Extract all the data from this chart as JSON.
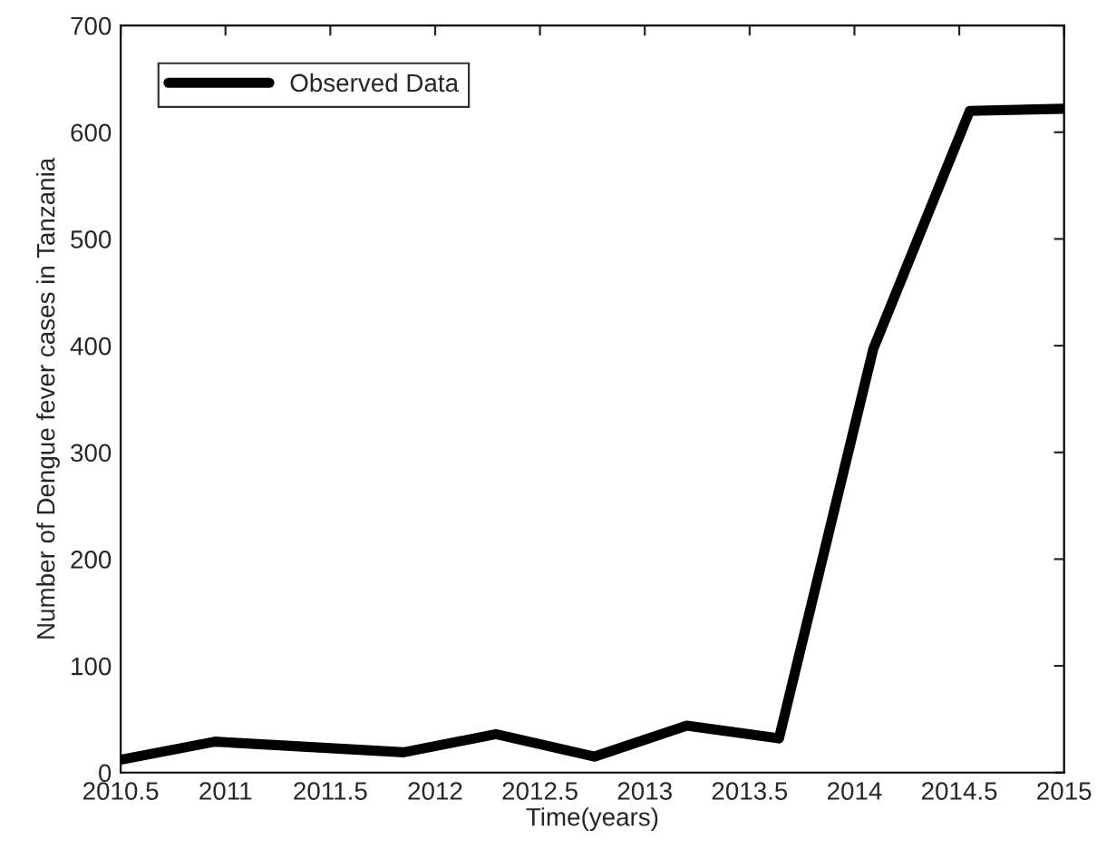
{
  "chart_data": {
    "type": "line",
    "xlabel": "Time(years)",
    "ylabel": "Number of Dengue fever cases in Tanzania",
    "x": [
      2010.5,
      2010.95,
      2011.85,
      2012.29,
      2012.76,
      2013.2,
      2013.64,
      2014.09,
      2014.55,
      2015
    ],
    "series": [
      {
        "name": "Observed Data",
        "color": "#000000",
        "values": [
          12,
          29,
          19,
          36,
          15,
          44,
          32,
          397,
          620,
          622
        ]
      }
    ],
    "xlim": [
      2010.5,
      2015
    ],
    "xticks": [
      2010.5,
      2011,
      2011.5,
      2012,
      2012.5,
      2013,
      2013.5,
      2014,
      2014.5,
      2015
    ],
    "ylim": [
      0,
      700
    ],
    "yticks": [
      0,
      100,
      200,
      300,
      400,
      500,
      600,
      700
    ],
    "grid": false,
    "legend": "top left",
    "marker": "none",
    "line_style": "solid"
  }
}
